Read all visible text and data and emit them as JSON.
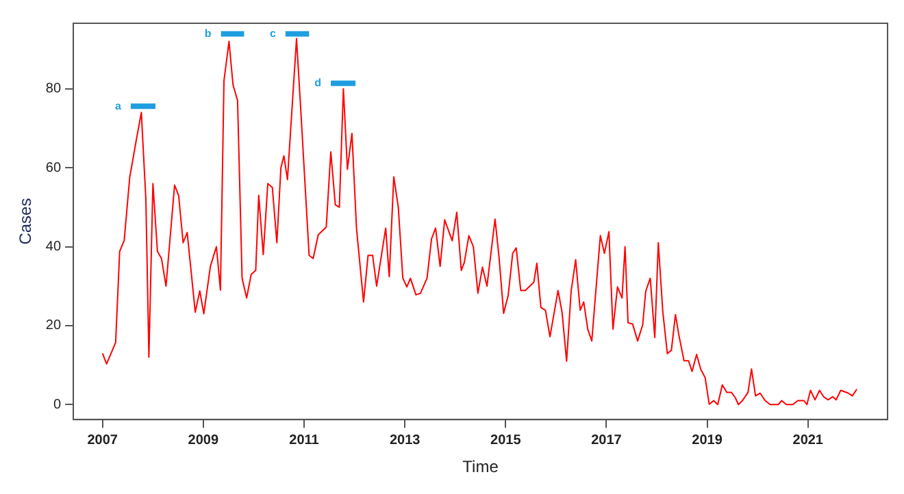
{
  "chart_data": {
    "type": "line",
    "xlabel": "Time",
    "ylabel": "Cases",
    "xlim": [
      2006.42,
      2022.58
    ],
    "xticks": [
      2007,
      2009,
      2011,
      2013,
      2015,
      2017,
      2019,
      2021
    ],
    "ylim": [
      -3.8,
      96.6
    ],
    "yticks": [
      0,
      20,
      40,
      60,
      80
    ],
    "grid": false,
    "legend": false,
    "marker": "none",
    "line_style": "solid",
    "annotations": [
      {
        "text": "a",
        "x": 2007.56,
        "y": 75.6
      },
      {
        "text": "b",
        "x": 2009.35,
        "y": 93.9
      },
      {
        "text": "c",
        "x": 2010.63,
        "y": 93.9
      },
      {
        "text": "d",
        "x": 2011.53,
        "y": 81.4
      }
    ],
    "series": [
      {
        "color": "#ff0000",
        "x": [
          2007.0,
          2007.08,
          2007.26,
          2007.34,
          2007.43,
          2007.54,
          2007.67,
          2007.77,
          2007.86,
          2007.9,
          2007.92,
          2008.0,
          2008.09,
          2008.17,
          2008.26,
          2008.43,
          2008.51,
          2008.6,
          2008.68,
          2008.84,
          2008.93,
          2009.01,
          2009.14,
          2009.26,
          2009.34,
          2009.41,
          2009.51,
          2009.59,
          2009.68,
          2009.77,
          2009.86,
          2009.95,
          2010.04,
          2010.1,
          2010.19,
          2010.28,
          2010.37,
          2010.46,
          2010.54,
          2010.6,
          2010.67,
          2010.85,
          2010.93,
          2011.1,
          2011.18,
          2011.28,
          2011.44,
          2011.53,
          2011.62,
          2011.7,
          2011.78,
          2011.86,
          2011.95,
          2012.04,
          2012.18,
          2012.27,
          2012.36,
          2012.44,
          2012.62,
          2012.69,
          2012.78,
          2012.87,
          2012.96,
          2013.04,
          2013.11,
          2013.22,
          2013.31,
          2013.44,
          2013.53,
          2013.61,
          2013.7,
          2013.79,
          2013.94,
          2014.03,
          2014.12,
          2014.18,
          2014.27,
          2014.36,
          2014.45,
          2014.54,
          2014.63,
          2014.79,
          2014.87,
          2014.96,
          2015.05,
          2015.14,
          2015.21,
          2015.3,
          2015.39,
          2015.56,
          2015.62,
          2015.7,
          2015.79,
          2015.88,
          2016.04,
          2016.12,
          2016.21,
          2016.3,
          2016.39,
          2016.48,
          2016.55,
          2016.63,
          2016.71,
          2016.8,
          2016.88,
          2016.96,
          2017.05,
          2017.13,
          2017.22,
          2017.31,
          2017.37,
          2017.43,
          2017.52,
          2017.62,
          2017.72,
          2017.78,
          2017.87,
          2017.96,
          2018.03,
          2018.12,
          2018.21,
          2018.29,
          2018.37,
          2018.44,
          2018.54,
          2018.63,
          2018.7,
          2018.79,
          2018.87,
          2018.96,
          2019.04,
          2019.13,
          2019.21,
          2019.3,
          2019.39,
          2019.48,
          2019.56,
          2019.62,
          2019.7,
          2019.81,
          2019.88,
          2019.96,
          2020.05,
          2020.15,
          2020.25,
          2020.41,
          2020.48,
          2020.57,
          2020.7,
          2020.8,
          2020.92,
          2020.98,
          2021.05,
          2021.14,
          2021.23,
          2021.31,
          2021.4,
          2021.49,
          2021.56,
          2021.65,
          2021.8,
          2021.88,
          2021.97
        ],
        "values": [
          13,
          10.3,
          15.7,
          38.8,
          41.6,
          57.6,
          67,
          74,
          52,
          25.6,
          12,
          56,
          38.8,
          37,
          30,
          55.6,
          53,
          41,
          43.6,
          23.4,
          28.8,
          23,
          35,
          40,
          29,
          82,
          92,
          81,
          77,
          32,
          27,
          33,
          34,
          53,
          38,
          56,
          55,
          41,
          60,
          63,
          57,
          92.7,
          75.6,
          37.8,
          37,
          43,
          45,
          64,
          50.6,
          50,
          80,
          59.6,
          68.7,
          44.7,
          26,
          37.8,
          37.8,
          30,
          44.7,
          32.4,
          57.7,
          50,
          32,
          29.8,
          32,
          27.8,
          28.2,
          32,
          42,
          44.7,
          35,
          46.8,
          41.5,
          48.7,
          34,
          36,
          42.8,
          40,
          28.2,
          34.8,
          30,
          47,
          37.2,
          23.1,
          27.6,
          38.3,
          39.7,
          28.9,
          28.9,
          31,
          35.8,
          24.6,
          23.9,
          17.2,
          28.9,
          23.4,
          11,
          28.7,
          36.7,
          23.9,
          26,
          19.1,
          16.1,
          30.3,
          42.8,
          38.3,
          43.8,
          19.1,
          29.8,
          27,
          40,
          20.7,
          20.4,
          16.1,
          20.2,
          28.7,
          32,
          17,
          41,
          23.4,
          12.9,
          13.8,
          22.8,
          17.5,
          11.1,
          11.1,
          8.4,
          12.7,
          9,
          6.8,
          0.1,
          1,
          0,
          5,
          3.1,
          3.1,
          1.7,
          0,
          1,
          3.1,
          9,
          2.2,
          2.9,
          1,
          0,
          0,
          1,
          0,
          0,
          1,
          1,
          0,
          3.6,
          1.2,
          3.6,
          2,
          1.2,
          2,
          1.2,
          3.6,
          2.9,
          2.2,
          3.9
        ]
      },
      {
        "color": "#1e9ee0",
        "x": [
          2007.56,
          2008.05
        ],
        "values": [
          75.6,
          75.6
        ]
      },
      {
        "color": "#1e9ee0",
        "x": [
          2009.35,
          2009.81
        ],
        "values": [
          93.9,
          93.9
        ]
      },
      {
        "color": "#1e9ee0",
        "x": [
          2010.63,
          2011.1
        ],
        "values": [
          93.9,
          93.9
        ]
      },
      {
        "color": "#1e9ee0",
        "x": [
          2011.53,
          2012.02
        ],
        "values": [
          81.4,
          81.4
        ]
      }
    ]
  }
}
